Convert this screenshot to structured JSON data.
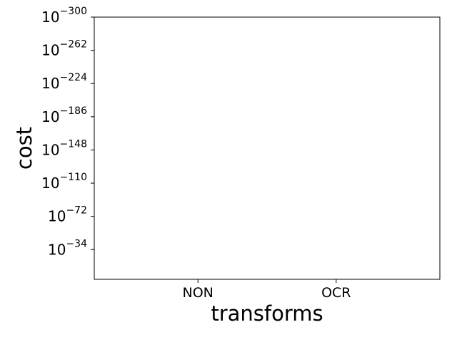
{
  "chart_data": {
    "type": "bar",
    "title": "",
    "xlabel": "transforms",
    "ylabel": "cost",
    "categories": [
      "NON",
      "OCR"
    ],
    "series": [
      {
        "values": [
          null,
          null
        ]
      }
    ],
    "yscale": "log",
    "ylim_exponents": [
      0,
      -300
    ],
    "yticks": [
      {
        "base": "10",
        "exp": "−300"
      },
      {
        "base": "10",
        "exp": "−262"
      },
      {
        "base": "10",
        "exp": "−224"
      },
      {
        "base": "10",
        "exp": "−186"
      },
      {
        "base": "10",
        "exp": "−148"
      },
      {
        "base": "10",
        "exp": "−110"
      },
      {
        "base": "10",
        "exp": "−72"
      },
      {
        "base": "10",
        "exp": "−34"
      }
    ],
    "ytick_exponent_values": [
      -300,
      -262,
      -224,
      -186,
      -148,
      -110,
      -72,
      -34
    ],
    "grid": false,
    "legend": "none"
  }
}
